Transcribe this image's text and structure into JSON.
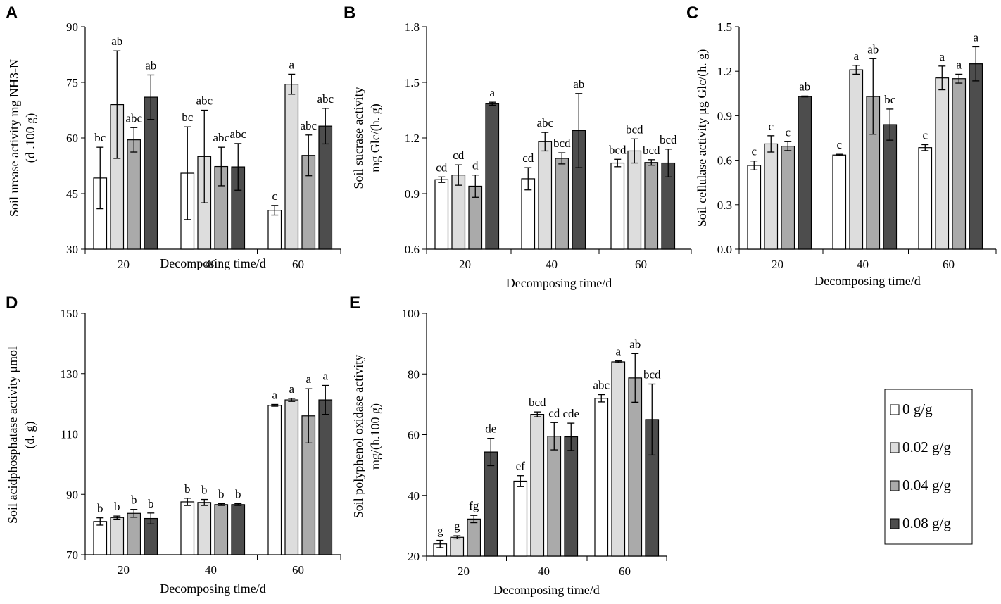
{
  "colors": {
    "0 g/g": "#ffffff",
    "0.02 g/g": "#dddddd",
    "0.04 g/g": "#aaaaaa",
    "0.08 g/g": "#4d4d4d",
    "axis": "#000000"
  },
  "legend": {
    "entries": [
      "0 g/g",
      "0.02 g/g",
      "0.04 g/g",
      "0.08 g/g"
    ]
  },
  "chart_data": [
    {
      "panel": "A",
      "type": "bar",
      "categories": [
        "20",
        "40",
        "60"
      ],
      "xlabel": "Decomposing time/d",
      "ylabel_lines": [
        "Soil urease activity mg NH3-N",
        "(d .100 g)"
      ],
      "ylim": [
        30,
        90
      ],
      "yticks": [
        "30",
        "45",
        "60",
        "75",
        "90"
      ],
      "series": [
        {
          "name": "0 g/g",
          "values": [
            49.2,
            50.5,
            40.5
          ],
          "errors": [
            8.3,
            12.5,
            1.3
          ],
          "letters": [
            "bc",
            "bc",
            "c"
          ]
        },
        {
          "name": "0.02 g/g",
          "values": [
            69.0,
            55.0,
            74.5
          ],
          "errors": [
            14.5,
            12.5,
            2.7
          ],
          "letters": [
            "ab",
            "abc",
            "a"
          ]
        },
        {
          "name": "0.04 g/g",
          "values": [
            59.5,
            52.3,
            55.3
          ],
          "errors": [
            3.3,
            5.2,
            5.5
          ],
          "letters": [
            "abc",
            "abc",
            "abc"
          ]
        },
        {
          "name": "0.08 g/g",
          "values": [
            71.0,
            52.2,
            63.2
          ],
          "errors": [
            6.0,
            6.3,
            4.8
          ],
          "letters": [
            "ab",
            "abc",
            "abc"
          ]
        }
      ]
    },
    {
      "panel": "B",
      "type": "bar",
      "categories": [
        "20",
        "40",
        "60"
      ],
      "xlabel": "Decomposing time/d",
      "ylabel_lines": [
        "Soil sucrase activity",
        "mg Glc/(h. g)"
      ],
      "ylim": [
        0.6,
        1.8
      ],
      "yticks": [
        "0.6",
        "0.9",
        "1.2",
        "1.5",
        "1.8"
      ],
      "series": [
        {
          "name": "0 g/g",
          "values": [
            0.975,
            0.98,
            1.065
          ],
          "errors": [
            0.015,
            0.06,
            0.02
          ],
          "letters": [
            "cd",
            "cd",
            "bcd"
          ]
        },
        {
          "name": "0.02 g/g",
          "values": [
            1.0,
            1.18,
            1.13
          ],
          "errors": [
            0.055,
            0.05,
            0.065
          ],
          "letters": [
            "cd",
            "abc",
            "bcd"
          ]
        },
        {
          "name": "0.04 g/g",
          "values": [
            0.94,
            1.09,
            1.068
          ],
          "errors": [
            0.06,
            0.03,
            0.015
          ],
          "letters": [
            "d",
            "bcd",
            "bcd"
          ]
        },
        {
          "name": "0.08 g/g",
          "values": [
            1.385,
            1.24,
            1.065
          ],
          "errors": [
            0.008,
            0.2,
            0.075
          ],
          "letters": [
            "a",
            "ab",
            "bcd"
          ]
        }
      ]
    },
    {
      "panel": "C",
      "type": "bar",
      "categories": [
        "20",
        "40",
        "60"
      ],
      "xlabel": "Decomposing time/d",
      "ylabel_lines": [
        "Soil cellulase activity  μg Glc/(h. g)"
      ],
      "ylim": [
        0.0,
        1.5
      ],
      "yticks": [
        "0.0",
        "0.3",
        "0.6",
        "0.9",
        "1.2",
        "1.5"
      ],
      "series": [
        {
          "name": "0 g/g",
          "values": [
            0.565,
            0.635,
            0.685
          ],
          "errors": [
            0.03,
            0.005,
            0.02
          ],
          "letters": [
            "c",
            "c",
            "c"
          ]
        },
        {
          "name": "0.02 g/g",
          "values": [
            0.71,
            1.21,
            1.155
          ],
          "errors": [
            0.055,
            0.03,
            0.08
          ],
          "letters": [
            "c",
            "a",
            "a"
          ]
        },
        {
          "name": "0.04 g/g",
          "values": [
            0.695,
            1.03,
            1.15
          ],
          "errors": [
            0.03,
            0.255,
            0.03
          ],
          "letters": [
            "c",
            "ab",
            "a"
          ]
        },
        {
          "name": "0.08 g/g",
          "values": [
            1.03,
            0.84,
            1.25
          ],
          "errors": [
            0.003,
            0.105,
            0.115
          ],
          "letters": [
            "ab",
            "bc",
            "a"
          ]
        }
      ]
    },
    {
      "panel": "D",
      "type": "bar",
      "categories": [
        "20",
        "40",
        "60"
      ],
      "xlabel": "Decomposing time/d",
      "ylabel_lines": [
        "Soil acidphosphatase activity μmol",
        "(d. g)"
      ],
      "ylim": [
        70,
        150
      ],
      "yticks": [
        "70",
        "90",
        "110",
        "130",
        "150"
      ],
      "series": [
        {
          "name": "0 g/g",
          "values": [
            81.0,
            87.5,
            119.5
          ],
          "errors": [
            1.2,
            1.2,
            0.3
          ],
          "letters": [
            "b",
            "b",
            "a"
          ]
        },
        {
          "name": "0.02 g/g",
          "values": [
            82.3,
            87.3,
            121.3
          ],
          "errors": [
            0.5,
            1.0,
            0.5
          ],
          "letters": [
            "b",
            "b",
            "a"
          ]
        },
        {
          "name": "0.04 g/g",
          "values": [
            83.7,
            86.6,
            116.0
          ],
          "errors": [
            1.3,
            0.3,
            9.0
          ],
          "letters": [
            "b",
            "b",
            "a"
          ]
        },
        {
          "name": "0.08 g/g",
          "values": [
            82.0,
            86.6,
            121.3
          ],
          "errors": [
            1.8,
            0.3,
            4.8
          ],
          "letters": [
            "b",
            "b",
            "a"
          ]
        }
      ]
    },
    {
      "panel": "E",
      "type": "bar",
      "categories": [
        "20",
        "40",
        "60"
      ],
      "xlabel": "Decomposing time/d",
      "ylabel_lines": [
        "Soil polyphenol oxidase activity",
        "mg/(h.100 g)"
      ],
      "ylim": [
        20,
        100
      ],
      "yticks": [
        "20",
        "40",
        "60",
        "80",
        "100"
      ],
      "series": [
        {
          "name": "0 g/g",
          "values": [
            24.0,
            44.7,
            72.0
          ],
          "errors": [
            1.2,
            1.8,
            1.2
          ],
          "letters": [
            "g",
            "ef",
            "abc"
          ]
        },
        {
          "name": "0.02 g/g",
          "values": [
            26.2,
            66.7,
            84.0
          ],
          "errors": [
            0.5,
            0.8,
            0.3
          ],
          "letters": [
            "g",
            "bcd",
            "a"
          ]
        },
        {
          "name": "0.04 g/g",
          "values": [
            32.2,
            59.5,
            78.7
          ],
          "errors": [
            1.2,
            4.5,
            8.0
          ],
          "letters": [
            "fg",
            "cd",
            "ab"
          ]
        },
        {
          "name": "0.08 g/g",
          "values": [
            54.3,
            59.3,
            65.0
          ],
          "errors": [
            4.5,
            4.5,
            11.7
          ],
          "letters": [
            "de",
            "cde",
            "bcd"
          ]
        }
      ]
    }
  ]
}
